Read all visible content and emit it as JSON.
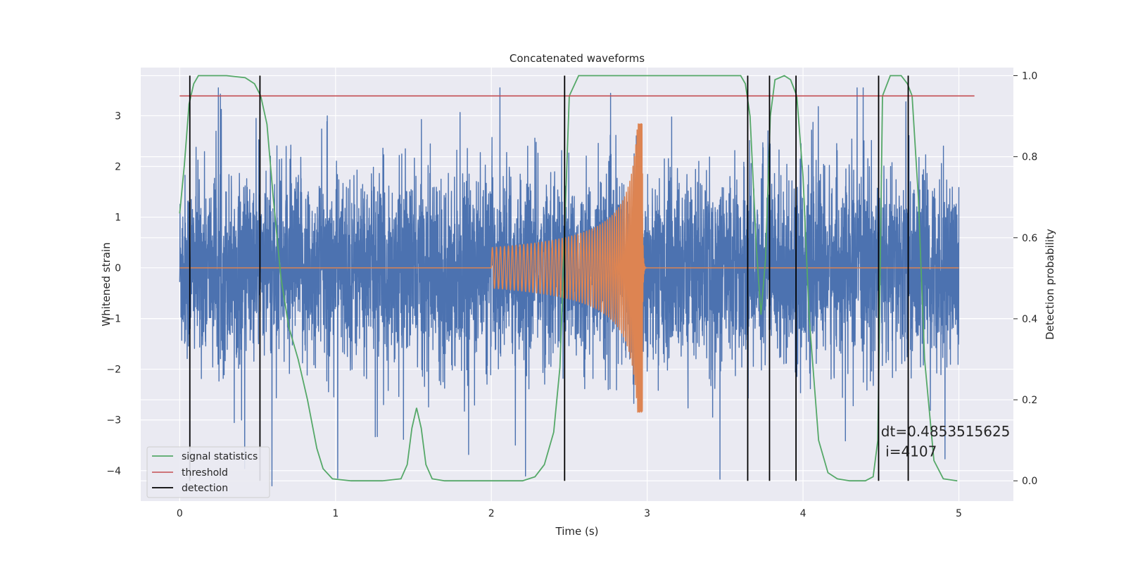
{
  "chart_data": {
    "type": "line",
    "title": "Concatenated waveforms",
    "xlabel": "Time (s)",
    "ylabel_left": "Whitened strain",
    "ylabel_right": "Detection probability",
    "xlim": [
      -0.25,
      5.35
    ],
    "ylim_left": [
      -4.6,
      3.95
    ],
    "ylim_right": [
      -0.05,
      1.02
    ],
    "xticks": [
      0,
      1,
      2,
      3,
      4,
      5
    ],
    "xtick_labels": [
      "0",
      "1",
      "2",
      "3",
      "4",
      "5"
    ],
    "yticks_left": [
      -4,
      -3,
      -2,
      -1,
      0,
      1,
      2,
      3
    ],
    "ytick_labels_left": [
      "−4",
      "−3",
      "−2",
      "−1",
      "0",
      "1",
      "2",
      "3"
    ],
    "yticks_right": [
      0.0,
      0.2,
      0.4,
      0.6,
      0.8,
      1.0
    ],
    "ytick_labels_right": [
      "0.0",
      "0.2",
      "0.4",
      "0.6",
      "0.8",
      "1.0"
    ],
    "grid": true,
    "legend_position": "lower-left",
    "series": [
      {
        "name": "",
        "axis": "left",
        "color": "#4c72b0",
        "description_type": "noisy strain (dense)",
        "x_range": [
          0.0,
          5.0
        ],
        "amplitude_envelope": 2.0,
        "y_min": -4.3,
        "y_max": 3.55
      },
      {
        "name": "",
        "axis": "left",
        "color": "#dd8452",
        "description_type": "chirp waveform",
        "x_range": [
          0.0,
          5.0
        ],
        "chirp_start": 2.0,
        "chirp_end": 2.97,
        "start_amplitude": 0.4,
        "peak_amplitude_max": 3.05,
        "peak_amplitude_min": -2.65
      },
      {
        "name": "signal statistics",
        "axis": "right",
        "color": "#55a868",
        "x": [
          0.0,
          0.03,
          0.06,
          0.09,
          0.12,
          0.18,
          0.3,
          0.42,
          0.48,
          0.52,
          0.56,
          0.6,
          0.65,
          0.7,
          0.76,
          0.82,
          0.88,
          0.92,
          0.98,
          1.1,
          1.3,
          1.42,
          1.46,
          1.49,
          1.52,
          1.55,
          1.58,
          1.62,
          1.7,
          2.0,
          2.2,
          2.28,
          2.34,
          2.4,
          2.44,
          2.47,
          2.5,
          2.56,
          2.7,
          3.0,
          3.5,
          3.6,
          3.63,
          3.66,
          3.7,
          3.73,
          3.76,
          3.79,
          3.82,
          3.88,
          3.92,
          3.96,
          4.0,
          4.04,
          4.1,
          4.16,
          4.22,
          4.3,
          4.4,
          4.45,
          4.48,
          4.51,
          4.56,
          4.63,
          4.67,
          4.7,
          4.74,
          4.78,
          4.84,
          4.9,
          4.99
        ],
        "y": [
          0.66,
          0.78,
          0.93,
          0.98,
          1.0,
          1.0,
          1.0,
          0.995,
          0.98,
          0.95,
          0.88,
          0.7,
          0.5,
          0.38,
          0.3,
          0.2,
          0.08,
          0.03,
          0.005,
          0.0,
          0.0,
          0.005,
          0.04,
          0.13,
          0.18,
          0.13,
          0.04,
          0.005,
          0.0,
          0.0,
          0.0,
          0.01,
          0.04,
          0.12,
          0.28,
          0.62,
          0.95,
          1.0,
          1.0,
          1.0,
          1.0,
          1.0,
          0.98,
          0.9,
          0.58,
          0.41,
          0.55,
          0.9,
          0.99,
          1.0,
          0.99,
          0.95,
          0.75,
          0.4,
          0.1,
          0.02,
          0.005,
          0.0,
          0.0,
          0.01,
          0.1,
          0.95,
          1.0,
          1.0,
          0.98,
          0.95,
          0.7,
          0.3,
          0.05,
          0.005,
          0.0
        ]
      },
      {
        "name": "threshold",
        "axis": "right",
        "color": "#c44e52",
        "x": [
          0.0,
          5.1
        ],
        "y": [
          0.95,
          0.95
        ]
      },
      {
        "name": "detection",
        "axis": "right",
        "color": "#000000",
        "vlines": [
          0.065,
          0.515,
          2.47,
          3.645,
          3.785,
          3.955,
          4.485,
          4.675
        ],
        "ymin": 0.0,
        "ymax": 1.0
      }
    ],
    "annotations": [
      {
        "text": "dt=0.4853515625",
        "x": 4.5,
        "y_right": 0.11
      },
      {
        "text": " i=4107",
        "x": 4.5,
        "y_right": 0.06
      }
    ]
  }
}
